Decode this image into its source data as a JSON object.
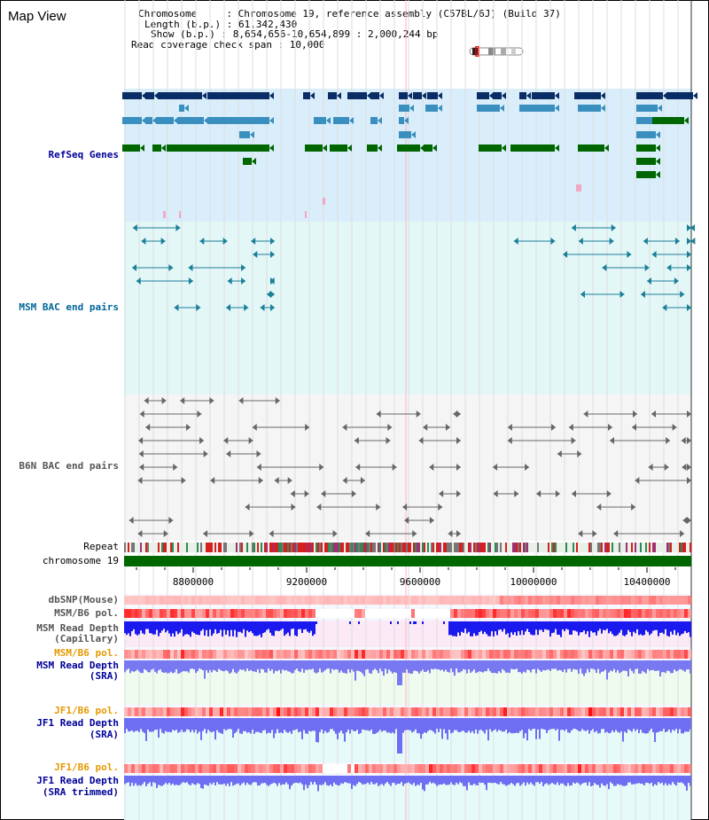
{
  "view_title": "Map View",
  "info": {
    "chromosome": "Chromosome     : Chromosome 19, reference assembly (C57BL/6J) (Build 37)",
    "length": "Length (b.p.) : 61,342,430",
    "show": "Show (b.p.) : 8,654,656-10,654,899 : 2,000,244 bp",
    "coverage": "Read coverage check span : 10,000"
  },
  "tracks": {
    "refseq": "RefSeq Genes",
    "msm_bac": "MSM BAC end pairs",
    "b6n_bac": "B6N BAC end pairs",
    "repeat": "Repeat",
    "chromosome": "chromosome 19",
    "dbsnp": "dbSNP(Mouse)",
    "msm_b6_pol_1": "MSM/B6 pol.",
    "msm_depth_cap_1": "MSM Read Depth",
    "msm_depth_cap_2": "(Capillary)",
    "msm_b6_pol_2": "MSM/B6 pol.",
    "msm_depth_sra_1": "MSM Read Depth",
    "msm_depth_sra_2": "(SRA)",
    "jf1_b6_pol_1": "JF1/B6 pol.",
    "jf1_depth_sra_1": "JF1 Read Depth",
    "jf1_depth_sra_2": "(SRA)",
    "jf1_b6_pol_2": "JF1/B6 pol.",
    "jf1_depth_trim_1": "JF1 Read Depth",
    "jf1_depth_trim_2": "(SRA trimmed)"
  },
  "axis": {
    "ticks": [
      "8800000",
      "9200000",
      "9600000",
      "10000000",
      "10400000"
    ]
  },
  "colors": {
    "refseq_dark": "#0a2d66",
    "refseq_mid": "#3a8fbf",
    "refseq_green": "#006600",
    "msm_label": "#006699",
    "b6n_label": "#555555",
    "orange_label": "#e69900",
    "navy_label": "#000099"
  }
}
